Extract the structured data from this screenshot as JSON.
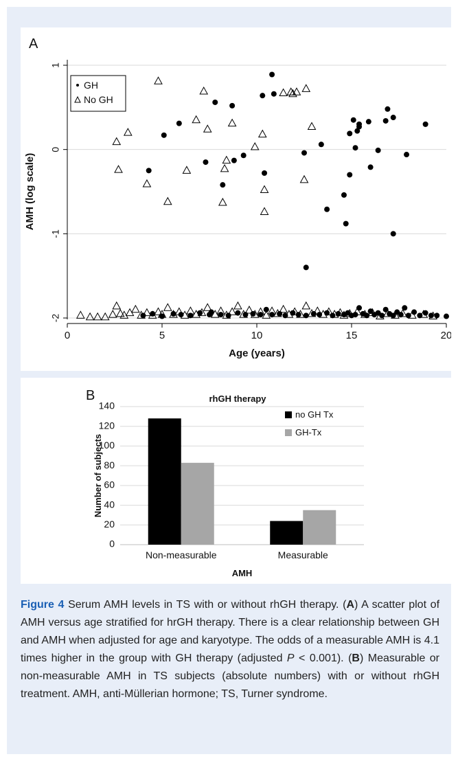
{
  "chart_data": [
    {
      "type": "scatter",
      "panel_label": "A",
      "title": "",
      "xlabel": "Age (years)",
      "ylabel": "AMH (log scale)",
      "xlim": [
        0,
        20
      ],
      "ylim": [
        -2,
        1
      ],
      "x_ticks": [
        0,
        5,
        10,
        15,
        20
      ],
      "y_ticks": [
        -2,
        -1,
        0,
        1
      ],
      "y_gridlines": true,
      "legend_position": "top-left",
      "series": [
        {
          "name": "GH",
          "marker": "filled-circle",
          "color": "#000000",
          "points": [
            [
              4.3,
              -0.25
            ],
            [
              5.1,
              0.17
            ],
            [
              5.9,
              0.31
            ],
            [
              7.3,
              -0.15
            ],
            [
              7.8,
              0.56
            ],
            [
              8.2,
              -0.42
            ],
            [
              8.7,
              0.52
            ],
            [
              8.8,
              -0.13
            ],
            [
              9.3,
              -0.07
            ],
            [
              10.3,
              0.64
            ],
            [
              10.4,
              -0.28
            ],
            [
              10.8,
              0.89
            ],
            [
              10.9,
              0.66
            ],
            [
              12.5,
              -0.04
            ],
            [
              13.4,
              0.06
            ],
            [
              13.7,
              -0.71
            ],
            [
              12.6,
              -1.4
            ],
            [
              14.6,
              -0.54
            ],
            [
              14.7,
              -0.88
            ],
            [
              14.9,
              0.19
            ],
            [
              14.9,
              -0.3
            ],
            [
              15.1,
              0.35
            ],
            [
              15.2,
              0.02
            ],
            [
              15.3,
              0.22
            ],
            [
              15.4,
              0.3
            ],
            [
              15.4,
              0.27
            ],
            [
              15.9,
              0.33
            ],
            [
              16.0,
              -0.21
            ],
            [
              16.4,
              -0.01
            ],
            [
              16.8,
              0.34
            ],
            [
              16.9,
              0.48
            ],
            [
              17.2,
              0.38
            ],
            [
              17.2,
              -1.0
            ],
            [
              17.9,
              -0.06
            ],
            [
              18.9,
              0.3
            ],
            [
              4.0,
              -1.97
            ],
            [
              4.5,
              -1.95
            ],
            [
              5.0,
              -1.98
            ],
            [
              5.6,
              -1.95
            ],
            [
              6.0,
              -1.96
            ],
            [
              6.5,
              -1.97
            ],
            [
              7.0,
              -1.94
            ],
            [
              7.5,
              -1.96
            ],
            [
              7.6,
              -1.93
            ],
            [
              8.1,
              -1.96
            ],
            [
              8.5,
              -1.97
            ],
            [
              9.0,
              -1.94
            ],
            [
              9.4,
              -1.96
            ],
            [
              9.8,
              -1.95
            ],
            [
              10.2,
              -1.96
            ],
            [
              10.5,
              -1.9
            ],
            [
              10.8,
              -1.96
            ],
            [
              11.2,
              -1.95
            ],
            [
              11.5,
              -1.97
            ],
            [
              11.9,
              -1.94
            ],
            [
              12.2,
              -1.96
            ],
            [
              12.6,
              -1.97
            ],
            [
              13.0,
              -1.95
            ],
            [
              13.3,
              -1.96
            ],
            [
              13.7,
              -1.94
            ],
            [
              14.0,
              -1.97
            ],
            [
              14.3,
              -1.95
            ],
            [
              14.6,
              -1.96
            ],
            [
              14.8,
              -1.94
            ],
            [
              15.0,
              -1.97
            ],
            [
              15.2,
              -1.96
            ],
            [
              15.4,
              -1.88
            ],
            [
              15.6,
              -1.95
            ],
            [
              15.8,
              -1.97
            ],
            [
              16.0,
              -1.92
            ],
            [
              16.2,
              -1.96
            ],
            [
              16.4,
              -1.94
            ],
            [
              16.6,
              -1.97
            ],
            [
              16.8,
              -1.9
            ],
            [
              17.0,
              -1.95
            ],
            [
              17.2,
              -1.97
            ],
            [
              17.4,
              -1.93
            ],
            [
              17.6,
              -1.96
            ],
            [
              17.8,
              -1.88
            ],
            [
              18.0,
              -1.97
            ],
            [
              18.3,
              -1.93
            ],
            [
              18.6,
              -1.97
            ],
            [
              18.9,
              -1.94
            ],
            [
              19.2,
              -1.97
            ],
            [
              19.5,
              -1.97
            ],
            [
              20.0,
              -1.98
            ]
          ]
        },
        {
          "name": "No GH",
          "marker": "open-triangle",
          "color": "#000000",
          "points": [
            [
              2.6,
              0.09
            ],
            [
              2.7,
              -0.24
            ],
            [
              3.2,
              0.2
            ],
            [
              4.2,
              -0.41
            ],
            [
              4.8,
              0.81
            ],
            [
              5.3,
              -0.62
            ],
            [
              6.3,
              -0.25
            ],
            [
              6.8,
              0.35
            ],
            [
              7.2,
              0.69
            ],
            [
              7.4,
              0.24
            ],
            [
              8.2,
              -0.63
            ],
            [
              8.3,
              -0.23
            ],
            [
              8.4,
              -0.13
            ],
            [
              8.7,
              0.31
            ],
            [
              9.9,
              0.03
            ],
            [
              10.3,
              0.18
            ],
            [
              10.4,
              -0.48
            ],
            [
              10.4,
              -0.74
            ],
            [
              11.4,
              0.67
            ],
            [
              11.8,
              0.68
            ],
            [
              11.9,
              0.66
            ],
            [
              12.1,
              0.68
            ],
            [
              12.5,
              -0.36
            ],
            [
              12.6,
              0.72
            ],
            [
              12.9,
              0.27
            ],
            [
              0.7,
              -1.97
            ],
            [
              1.2,
              -1.99
            ],
            [
              1.6,
              -1.99
            ],
            [
              2.0,
              -1.99
            ],
            [
              2.4,
              -1.96
            ],
            [
              2.6,
              -1.86
            ],
            [
              2.8,
              -1.95
            ],
            [
              3.0,
              -1.97
            ],
            [
              3.3,
              -1.94
            ],
            [
              3.6,
              -1.9
            ],
            [
              3.9,
              -1.97
            ],
            [
              4.2,
              -1.94
            ],
            [
              4.5,
              -1.97
            ],
            [
              4.8,
              -1.93
            ],
            [
              5.0,
              -1.96
            ],
            [
              5.3,
              -1.88
            ],
            [
              5.6,
              -1.96
            ],
            [
              5.9,
              -1.93
            ],
            [
              6.2,
              -1.97
            ],
            [
              6.5,
              -1.92
            ],
            [
              6.8,
              -1.96
            ],
            [
              7.1,
              -1.94
            ],
            [
              7.4,
              -1.88
            ],
            [
              7.8,
              -1.96
            ],
            [
              8.1,
              -1.92
            ],
            [
              8.4,
              -1.97
            ],
            [
              8.7,
              -1.93
            ],
            [
              9.0,
              -1.86
            ],
            [
              9.3,
              -1.96
            ],
            [
              9.6,
              -1.91
            ],
            [
              9.9,
              -1.96
            ],
            [
              10.2,
              -1.93
            ],
            [
              10.5,
              -1.97
            ],
            [
              10.8,
              -1.92
            ],
            [
              11.1,
              -1.95
            ],
            [
              11.4,
              -1.9
            ],
            [
              11.7,
              -1.96
            ],
            [
              12.0,
              -1.93
            ],
            [
              12.3,
              -1.96
            ],
            [
              12.6,
              -1.86
            ],
            [
              12.9,
              -1.95
            ],
            [
              13.2,
              -1.92
            ],
            [
              13.5,
              -1.96
            ],
            [
              13.8,
              -1.93
            ],
            [
              14.1,
              -1.96
            ],
            [
              14.4,
              -1.94
            ],
            [
              14.6,
              -1.97
            ],
            [
              14.9,
              -1.95
            ],
            [
              15.3,
              -1.93
            ],
            [
              15.7,
              -1.96
            ],
            [
              16.1,
              -1.94
            ],
            [
              16.5,
              -1.98
            ],
            [
              16.9,
              -1.95
            ],
            [
              17.3,
              -1.97
            ],
            [
              17.7,
              -1.95
            ],
            [
              18.2,
              -1.97
            ],
            [
              18.8,
              -1.96
            ],
            [
              19.3,
              -1.98
            ]
          ]
        }
      ]
    },
    {
      "type": "bar",
      "panel_label": "B",
      "title": "rhGH therapy",
      "xlabel": "AMH",
      "ylabel": "Number of subjects",
      "ylim": [
        0,
        140
      ],
      "y_ticks": [
        0,
        20,
        40,
        60,
        80,
        100,
        120,
        140
      ],
      "y_gridlines": true,
      "legend_position": "top-right",
      "categories": [
        "Non-measurable",
        "Measurable"
      ],
      "series": [
        {
          "name": "no GH Tx",
          "color": "#000000",
          "values": [
            128,
            24
          ]
        },
        {
          "name": "GH-Tx",
          "color": "#a6a6a6",
          "values": [
            83,
            35
          ]
        }
      ]
    }
  ],
  "caption": {
    "figure_label": "Figure 4",
    "text_1": " Serum AMH levels in TS with or without rhGH therapy. (",
    "bold_a": "A",
    "text_2": ") A scatter plot of AMH versus age stratified for hrGH therapy. There is a clear relationship between GH and AMH when adjusted for age and karyotype. The odds of a measurable AMH is 4.1 times higher in the group with GH therapy (adjusted ",
    "italic_p": "P",
    "text_3": " < 0.001). (",
    "bold_b": "B",
    "text_4": ") Measurable or non-measurable AMH in TS subjects (absolute numbers) with or without rhGH treatment. AMH, anti-Müllerian hormone; TS, Turner syndrome."
  }
}
